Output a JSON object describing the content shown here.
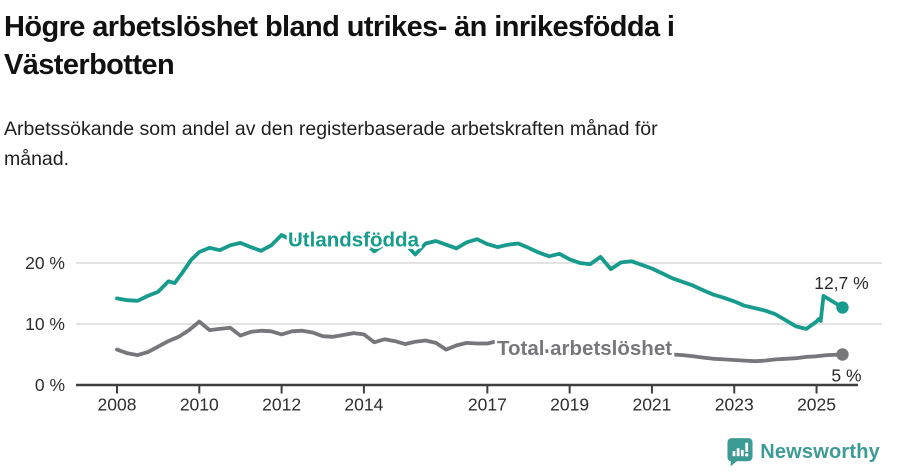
{
  "header": {
    "title_lines": [
      "Högre arbetslöshet bland utrikes- än inrikesfödda i",
      "Västerbotten"
    ],
    "subtitle_lines": [
      "Arbetssökande som andel av den registerbaserade arbetskraften månad för",
      "månad."
    ]
  },
  "chart_data": {
    "type": "line",
    "title": "Högre arbetslöshet bland utrikes- än inrikesfödda i Västerbotten",
    "subtitle": "Arbetssökande som andel av den registerbaserade arbetskraften månad för månad.",
    "unit": "%",
    "ylim": [
      0,
      27
    ],
    "x_range": [
      2008,
      2025.7
    ],
    "grid": "horizontal",
    "colors": {
      "axis": "#3f3f3f",
      "grid": "#dadada",
      "tick_text": "#2e2e2e",
      "value_text": "#2a2a2a"
    },
    "yticks": [
      {
        "value": 0,
        "label": "0 %"
      },
      {
        "value": 10,
        "label": "10 %"
      },
      {
        "value": 20,
        "label": "20 %"
      }
    ],
    "xticks": [
      {
        "year": 2008,
        "label": "2008"
      },
      {
        "year": 2010,
        "label": "2010"
      },
      {
        "year": 2012,
        "label": "2012"
      },
      {
        "year": 2014,
        "label": "2014"
      },
      {
        "year": 2017,
        "label": "2017"
      },
      {
        "year": 2019,
        "label": "2019"
      },
      {
        "year": 2021,
        "label": "2021"
      },
      {
        "year": 2023,
        "label": "2023"
      },
      {
        "year": 2025,
        "label": "2025"
      }
    ],
    "series": [
      {
        "id": "total",
        "name": "Total arbetslöshet",
        "color": "#77777b",
        "end_label": "5 %",
        "end_value": 5.0,
        "points": [
          [
            2008.0,
            5.8
          ],
          [
            2008.25,
            5.2
          ],
          [
            2008.5,
            4.9
          ],
          [
            2008.75,
            5.4
          ],
          [
            2009.0,
            6.3
          ],
          [
            2009.25,
            7.2
          ],
          [
            2009.5,
            7.9
          ],
          [
            2009.75,
            9.0
          ],
          [
            2010.0,
            10.4
          ],
          [
            2010.25,
            9.0
          ],
          [
            2010.5,
            9.2
          ],
          [
            2010.75,
            9.4
          ],
          [
            2011.0,
            8.1
          ],
          [
            2011.25,
            8.7
          ],
          [
            2011.5,
            8.9
          ],
          [
            2011.75,
            8.8
          ],
          [
            2012.0,
            8.3
          ],
          [
            2012.25,
            8.8
          ],
          [
            2012.5,
            8.9
          ],
          [
            2012.75,
            8.6
          ],
          [
            2013.0,
            8.0
          ],
          [
            2013.25,
            7.9
          ],
          [
            2013.5,
            8.2
          ],
          [
            2013.75,
            8.5
          ],
          [
            2014.0,
            8.3
          ],
          [
            2014.25,
            7.0
          ],
          [
            2014.5,
            7.5
          ],
          [
            2014.75,
            7.2
          ],
          [
            2015.0,
            6.7
          ],
          [
            2015.25,
            7.1
          ],
          [
            2015.5,
            7.3
          ],
          [
            2015.75,
            6.9
          ],
          [
            2016.0,
            5.8
          ],
          [
            2016.25,
            6.5
          ],
          [
            2016.5,
            6.9
          ],
          [
            2016.75,
            6.8
          ],
          [
            2017.0,
            6.8
          ],
          [
            2017.25,
            7.2
          ],
          [
            2017.5,
            6.3
          ],
          [
            2017.75,
            6.2
          ],
          [
            2018.0,
            6.0
          ],
          [
            2018.25,
            5.7
          ],
          [
            2018.5,
            5.5
          ],
          [
            2018.75,
            5.7
          ],
          [
            2019.0,
            5.5
          ],
          [
            2019.25,
            5.3
          ],
          [
            2019.5,
            5.4
          ],
          [
            2019.75,
            5.8
          ],
          [
            2020.0,
            6.1
          ],
          [
            2020.25,
            6.3
          ],
          [
            2020.5,
            6.2
          ],
          [
            2020.75,
            5.9
          ],
          [
            2021.0,
            5.6
          ],
          [
            2021.25,
            5.3
          ],
          [
            2021.5,
            5.0
          ],
          [
            2021.75,
            4.9
          ],
          [
            2022.0,
            4.7
          ],
          [
            2022.25,
            4.5
          ],
          [
            2022.5,
            4.3
          ],
          [
            2022.75,
            4.2
          ],
          [
            2023.0,
            4.1
          ],
          [
            2023.25,
            4.0
          ],
          [
            2023.5,
            3.9
          ],
          [
            2023.75,
            4.0
          ],
          [
            2024.0,
            4.2
          ],
          [
            2024.25,
            4.3
          ],
          [
            2024.5,
            4.4
          ],
          [
            2024.75,
            4.6
          ],
          [
            2025.0,
            4.7
          ],
          [
            2025.25,
            4.9
          ],
          [
            2025.63,
            5.0
          ]
        ]
      },
      {
        "id": "utlandsfodda",
        "name": "Utlandsfödda",
        "color": "#169b8c",
        "end_label": "12,7 %",
        "end_value": 12.7,
        "points": [
          [
            2008.0,
            14.2
          ],
          [
            2008.25,
            13.9
          ],
          [
            2008.5,
            13.8
          ],
          [
            2008.75,
            14.6
          ],
          [
            2009.0,
            15.3
          ],
          [
            2009.25,
            17.0
          ],
          [
            2009.4,
            16.7
          ],
          [
            2009.6,
            18.5
          ],
          [
            2009.8,
            20.5
          ],
          [
            2010.0,
            21.8
          ],
          [
            2010.25,
            22.5
          ],
          [
            2010.5,
            22.1
          ],
          [
            2010.75,
            22.9
          ],
          [
            2011.0,
            23.3
          ],
          [
            2011.25,
            22.6
          ],
          [
            2011.5,
            22.0
          ],
          [
            2011.75,
            22.9
          ],
          [
            2012.0,
            24.6
          ],
          [
            2012.25,
            23.7
          ],
          [
            2012.5,
            24.0
          ],
          [
            2012.75,
            24.3
          ],
          [
            2013.0,
            23.8
          ],
          [
            2013.25,
            23.2
          ],
          [
            2013.5,
            23.6
          ],
          [
            2013.75,
            23.9
          ],
          [
            2014.0,
            23.5
          ],
          [
            2014.25,
            21.9
          ],
          [
            2014.5,
            23.1
          ],
          [
            2014.75,
            23.6
          ],
          [
            2015.0,
            23.2
          ],
          [
            2015.25,
            21.4
          ],
          [
            2015.5,
            23.2
          ],
          [
            2015.75,
            23.6
          ],
          [
            2016.0,
            23.0
          ],
          [
            2016.25,
            22.4
          ],
          [
            2016.5,
            23.4
          ],
          [
            2016.75,
            23.9
          ],
          [
            2017.0,
            23.1
          ],
          [
            2017.25,
            22.6
          ],
          [
            2017.5,
            23.0
          ],
          [
            2017.75,
            23.2
          ],
          [
            2018.0,
            22.5
          ],
          [
            2018.25,
            21.7
          ],
          [
            2018.5,
            21.1
          ],
          [
            2018.75,
            21.5
          ],
          [
            2019.0,
            20.6
          ],
          [
            2019.25,
            20.0
          ],
          [
            2019.5,
            19.8
          ],
          [
            2019.75,
            21.0
          ],
          [
            2020.0,
            19.0
          ],
          [
            2020.25,
            20.1
          ],
          [
            2020.5,
            20.3
          ],
          [
            2020.75,
            19.7
          ],
          [
            2021.0,
            19.1
          ],
          [
            2021.25,
            18.3
          ],
          [
            2021.5,
            17.5
          ],
          [
            2021.75,
            16.9
          ],
          [
            2022.0,
            16.3
          ],
          [
            2022.25,
            15.5
          ],
          [
            2022.5,
            14.8
          ],
          [
            2022.75,
            14.3
          ],
          [
            2023.0,
            13.7
          ],
          [
            2023.25,
            13.0
          ],
          [
            2023.5,
            12.6
          ],
          [
            2023.75,
            12.2
          ],
          [
            2024.0,
            11.6
          ],
          [
            2024.25,
            10.6
          ],
          [
            2024.5,
            9.6
          ],
          [
            2024.75,
            9.2
          ],
          [
            2025.0,
            10.4
          ],
          [
            2025.05,
            10.8
          ],
          [
            2025.1,
            10.5
          ],
          [
            2025.17,
            14.6
          ],
          [
            2025.63,
            12.7
          ]
        ]
      }
    ]
  },
  "footer": {
    "brand": "Newsworthy",
    "brand_color": "#3d9b95",
    "icon": "newsworthy-speech-bubble-bar-chart-icon"
  }
}
